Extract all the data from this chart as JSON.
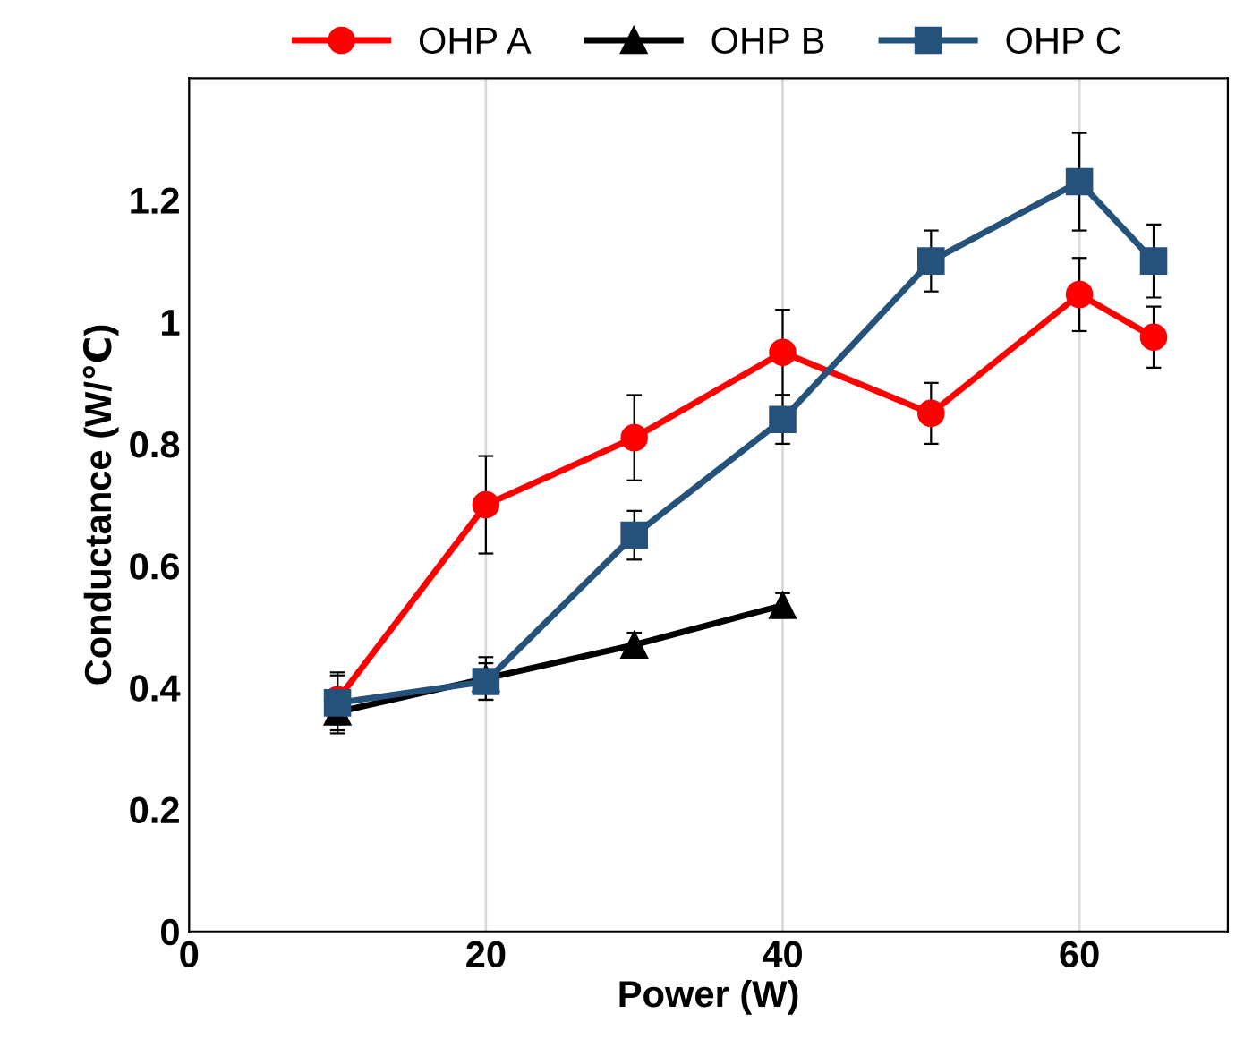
{
  "chart_data": {
    "type": "line",
    "xlabel": "Power (W)",
    "ylabel": "Conductance (W/℃)",
    "xlim": [
      0,
      70
    ],
    "xticks": [
      0,
      20,
      40,
      60
    ],
    "ylim": [
      0,
      1.4
    ],
    "yticks": [
      0,
      0.2,
      0.4,
      0.6,
      0.8,
      1,
      1.2
    ],
    "grid": "x",
    "legend": "top",
    "line_style": "solid",
    "series": [
      {
        "name": "OHP A",
        "color": "#ff0000",
        "marker": "circle",
        "x": [
          10,
          20,
          30,
          40,
          50,
          60,
          65
        ],
        "values": [
          0.38,
          0.7,
          0.81,
          0.95,
          0.85,
          1.045,
          0.975
        ],
        "errors": [
          0.04,
          0.08,
          0.07,
          0.07,
          0.05,
          0.06,
          0.05
        ]
      },
      {
        "name": "OHP B",
        "color": "#000000",
        "marker": "triangle",
        "x": [
          10,
          20,
          30,
          40
        ],
        "values": [
          0.36,
          0.415,
          0.47,
          0.535
        ],
        "errors": [
          0.03,
          0.035,
          0.02,
          0.02
        ]
      },
      {
        "name": "OHP C",
        "color": "#24527a",
        "marker": "square",
        "x": [
          10,
          20,
          30,
          40,
          50,
          60,
          65
        ],
        "values": [
          0.375,
          0.41,
          0.65,
          0.84,
          1.1,
          1.23,
          1.1
        ],
        "errors": [
          0.05,
          0.03,
          0.04,
          0.04,
          0.05,
          0.08,
          0.06
        ]
      }
    ]
  }
}
